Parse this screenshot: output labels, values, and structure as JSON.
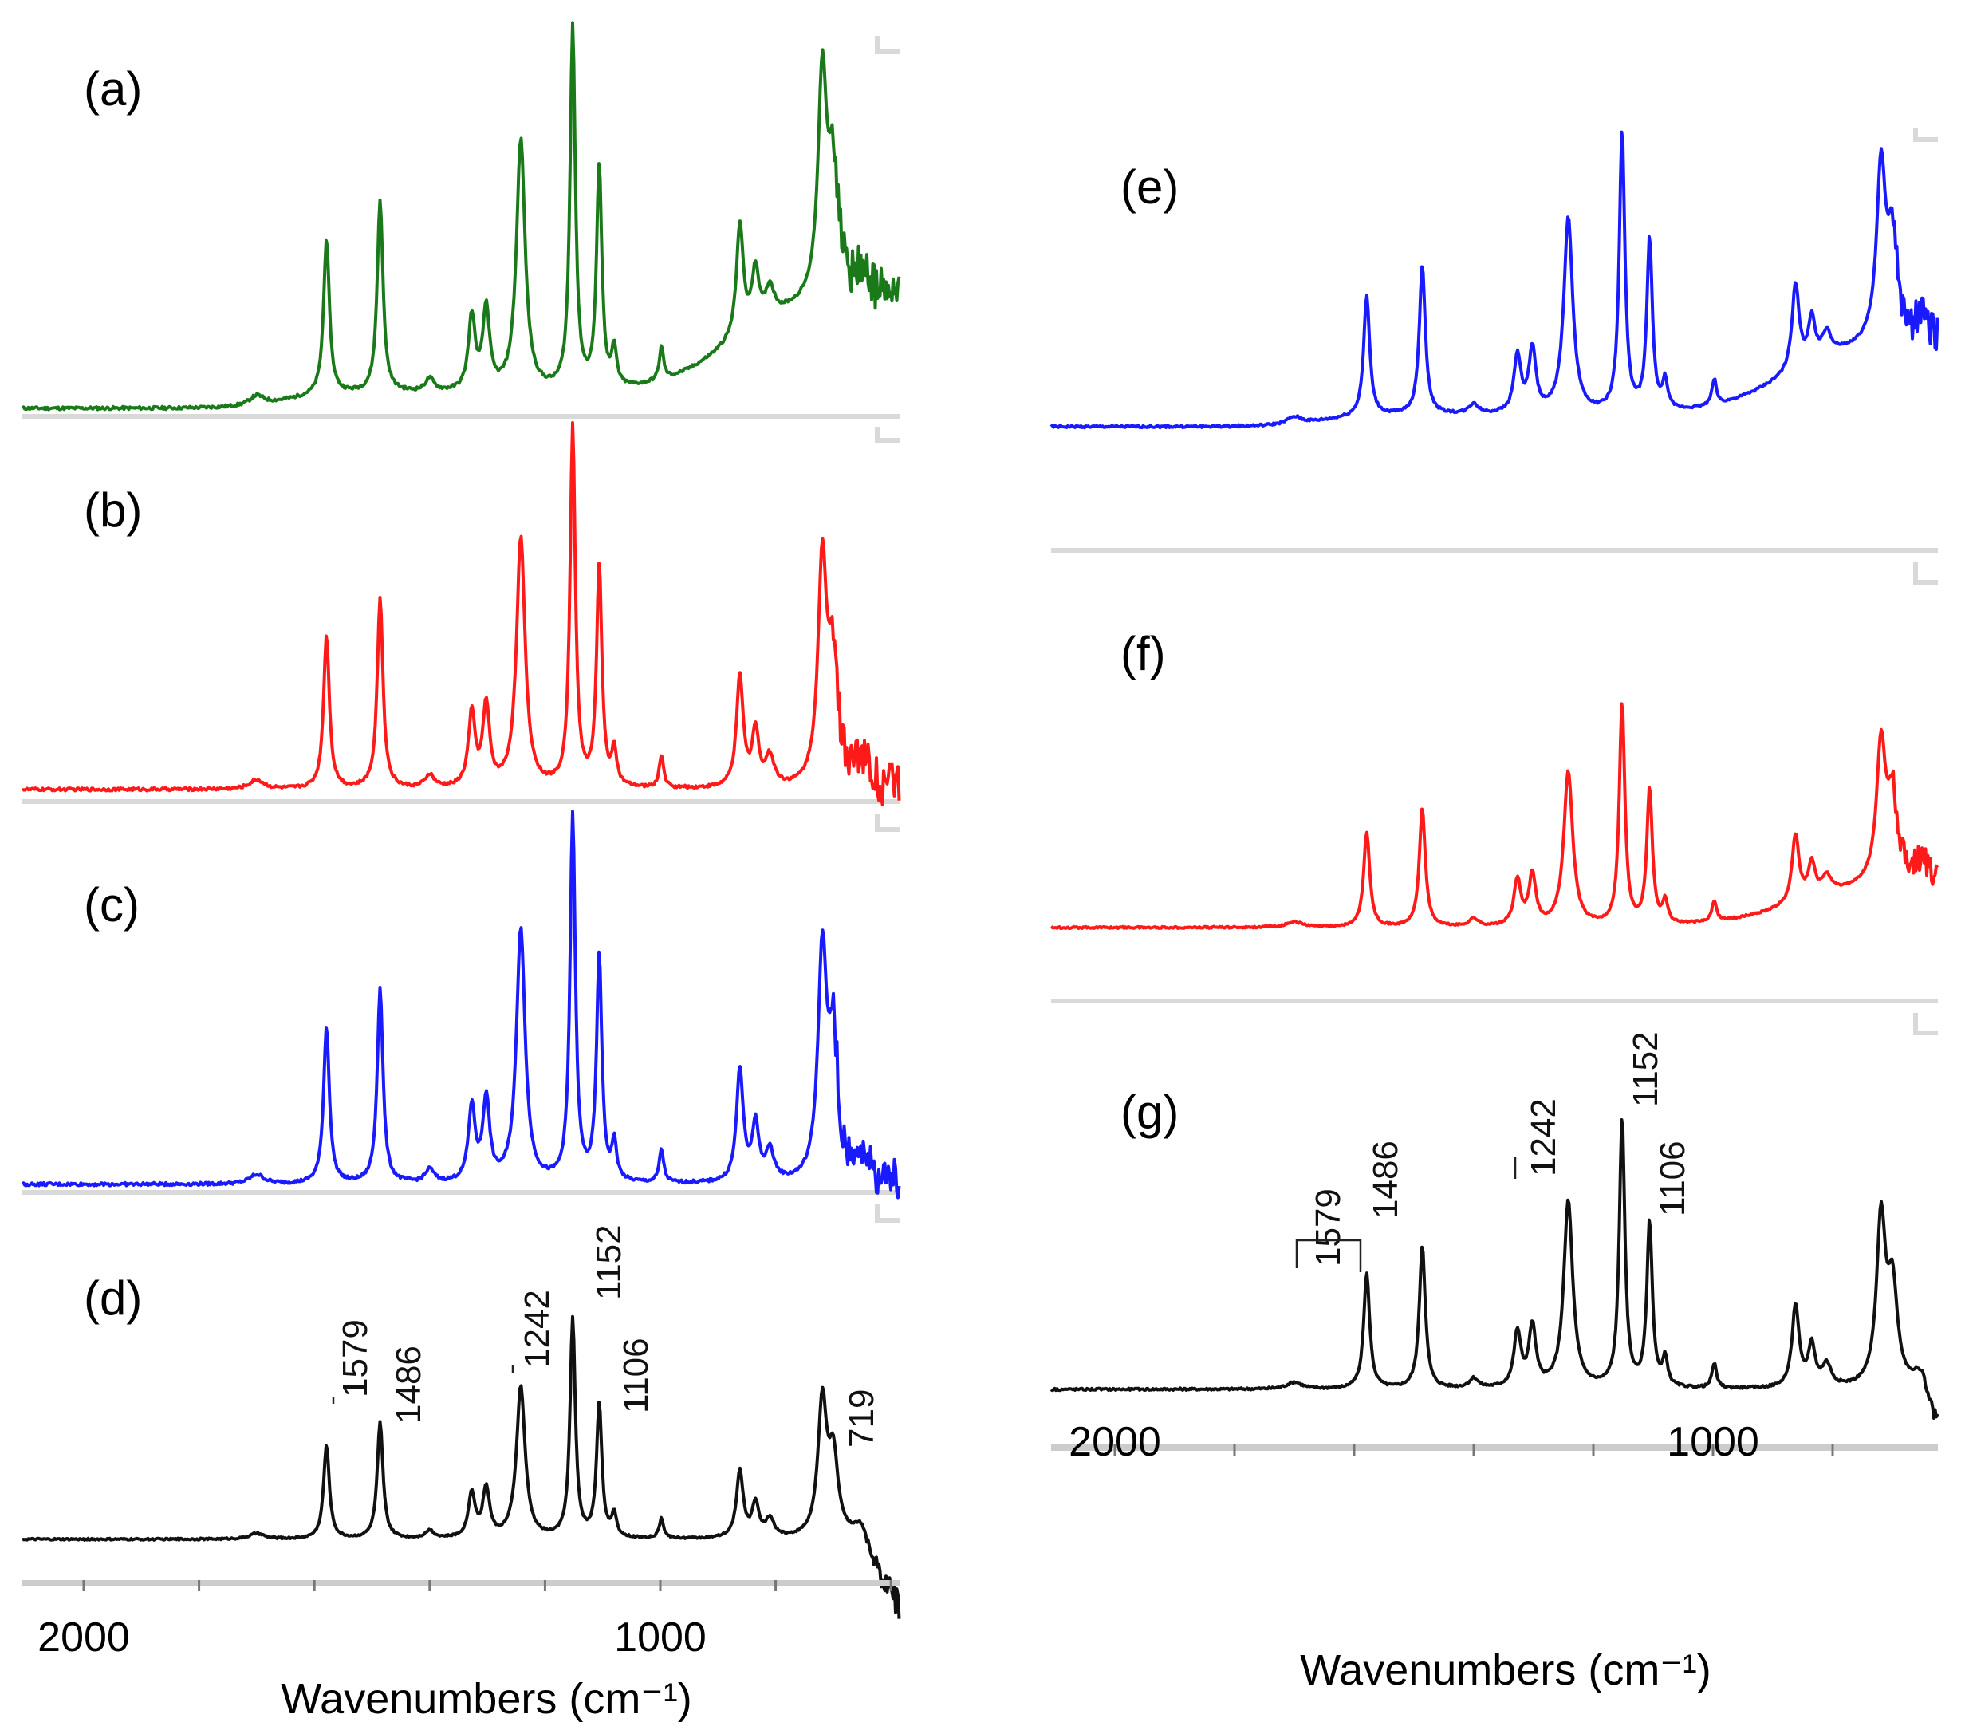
{
  "chart_data": {
    "type": "line",
    "xlabel": "Wavenumbers (cm⁻¹)",
    "xlim": [
      2100,
      575
    ],
    "x_tick_labels": [
      "2000",
      "1000"
    ],
    "colors": {
      "green": "#1a7a1a",
      "red": "#ff1a1a",
      "blue": "#1a1aff",
      "black": "#111111",
      "axis": "#cccccc",
      "frame": "#d9d9d9"
    },
    "peaks": [
      {
        "center": 1700,
        "width": 15,
        "height": 0.025
      },
      {
        "center": 1579,
        "width": 6,
        "height": 0.42
      },
      {
        "center": 1486,
        "width": 6,
        "height": 0.52
      },
      {
        "center": 1400,
        "width": 9,
        "height": 0.035
      },
      {
        "center": 1327,
        "width": 7,
        "height": 0.2
      },
      {
        "center": 1302,
        "width": 7,
        "height": 0.22
      },
      {
        "center": 1242,
        "width": 9,
        "height": 0.68
      },
      {
        "center": 1152,
        "width": 5.5,
        "height": 0.98
      },
      {
        "center": 1106,
        "width": 5.5,
        "height": 0.6
      },
      {
        "center": 1080,
        "width": 5,
        "height": 0.1
      },
      {
        "center": 998,
        "width": 4.5,
        "height": 0.09
      },
      {
        "center": 862,
        "width": 7,
        "height": 0.3
      },
      {
        "center": 835,
        "width": 7,
        "height": 0.15
      },
      {
        "center": 810,
        "width": 9,
        "height": 0.08
      },
      {
        "center": 719,
        "width": 9,
        "height": 0.6
      },
      {
        "center": 700,
        "width": 10,
        "height": 0.35
      },
      {
        "center": 650,
        "width": 12,
        "height": 0.08
      }
    ],
    "panels": [
      {
        "id": "a",
        "label": "(a)",
        "color": "green",
        "background": "sigmoid-rising",
        "noisy_tail": true
      },
      {
        "id": "b",
        "label": "(b)",
        "color": "red",
        "background": "flat",
        "noisy_tail": true
      },
      {
        "id": "c",
        "label": "(c)",
        "color": "blue",
        "background": "flat",
        "noisy_tail": true
      },
      {
        "id": "d",
        "label": "(d)",
        "color": "black",
        "background": "flat",
        "noisy_tail": false,
        "peak_labels": [
          "1579",
          "1486",
          "1242",
          "1152",
          "1106",
          "719"
        ]
      },
      {
        "id": "e",
        "label": "(e)",
        "color": "blue",
        "background": "sigmoid-rising",
        "noisy_tail": true
      },
      {
        "id": "f",
        "label": "(f)",
        "color": "red",
        "background": "rising",
        "noisy_tail": true
      },
      {
        "id": "g",
        "label": "(g)",
        "color": "black",
        "background": "flat",
        "noisy_tail": false,
        "peak_labels": [
          "1579",
          "1486",
          "1242",
          "1152",
          "1106"
        ]
      }
    ]
  }
}
